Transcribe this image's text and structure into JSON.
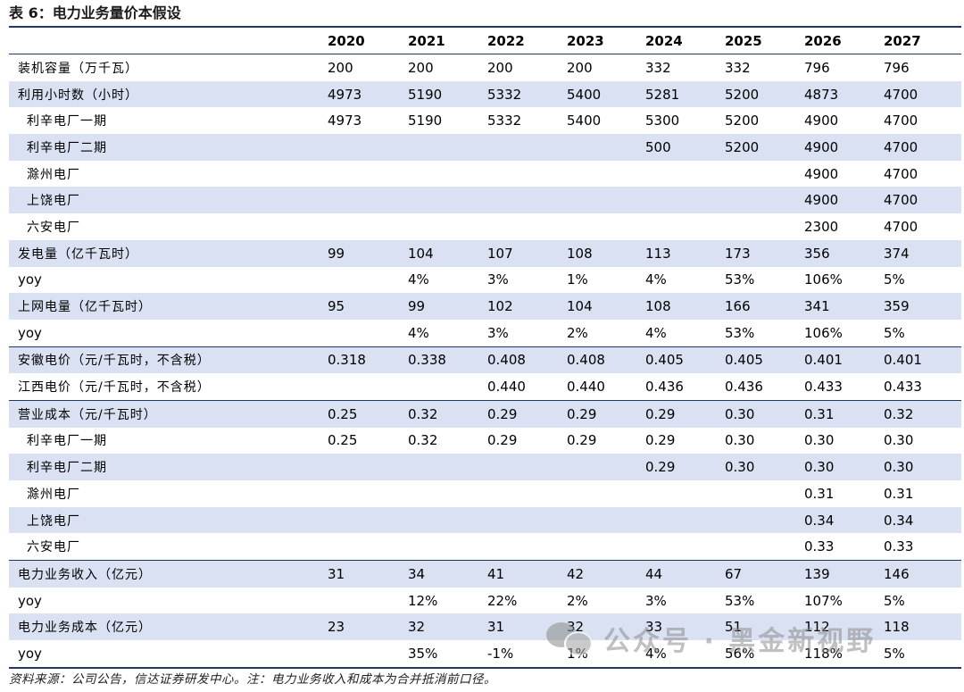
{
  "title": "表 6：电力业务量价本假设",
  "header": [
    "",
    "2020",
    "2021",
    "2022",
    "2023",
    "2024",
    "2025",
    "2026",
    "2027"
  ],
  "rows": [
    {
      "label": "装机容量（万千瓦）",
      "values": [
        "200",
        "200",
        "200",
        "200",
        "332",
        "332",
        "796",
        "796"
      ]
    },
    {
      "label": "利用小时数（小时）",
      "values": [
        "4973",
        "5190",
        "5332",
        "5400",
        "5281",
        "5200",
        "4873",
        "4700"
      ]
    },
    {
      "label": "利辛电厂一期",
      "values": [
        "4973",
        "5190",
        "5332",
        "5400",
        "5300",
        "5200",
        "4900",
        "4700"
      ]
    },
    {
      "label": "利辛电厂二期",
      "values": [
        "",
        "",
        "",
        "",
        "500",
        "5200",
        "4900",
        "4700"
      ]
    },
    {
      "label": "滁州电厂",
      "values": [
        "",
        "",
        "",
        "",
        "",
        "",
        "4900",
        "4700"
      ]
    },
    {
      "label": "上饶电厂",
      "values": [
        "",
        "",
        "",
        "",
        "",
        "",
        "4900",
        "4700"
      ]
    },
    {
      "label": "六安电厂",
      "values": [
        "",
        "",
        "",
        "",
        "",
        "",
        "2300",
        "4700"
      ]
    },
    {
      "label": "发电量（亿千瓦时）",
      "values": [
        "99",
        "104",
        "107",
        "108",
        "113",
        "173",
        "356",
        "374"
      ]
    },
    {
      "label": "yoy",
      "values": [
        "",
        "4%",
        "3%",
        "1%",
        "4%",
        "53%",
        "106%",
        "5%"
      ]
    },
    {
      "label": "上网电量（亿千瓦时）",
      "values": [
        "95",
        "99",
        "102",
        "104",
        "108",
        "166",
        "341",
        "359"
      ]
    },
    {
      "label": "yoy",
      "values": [
        "",
        "4%",
        "3%",
        "2%",
        "4%",
        "53%",
        "106%",
        "5%"
      ]
    },
    {
      "label": "安徽电价（元/千瓦时，不含税）",
      "values": [
        "0.318",
        "0.338",
        "0.408",
        "0.408",
        "0.405",
        "0.405",
        "0.401",
        "0.401"
      ]
    },
    {
      "label": "江西电价（元/千瓦时，不含税）",
      "values": [
        "",
        "",
        "0.440",
        "0.440",
        "0.436",
        "0.436",
        "0.433",
        "0.433"
      ]
    },
    {
      "label": "营业成本（元/千瓦时）",
      "values": [
        "0.25",
        "0.32",
        "0.29",
        "0.29",
        "0.29",
        "0.30",
        "0.31",
        "0.32"
      ]
    },
    {
      "label": "利辛电厂一期",
      "values": [
        "0.25",
        "0.32",
        "0.29",
        "0.29",
        "0.29",
        "0.30",
        "0.30",
        "0.30"
      ]
    },
    {
      "label": "利辛电厂二期",
      "values": [
        "",
        "",
        "",
        "",
        "0.29",
        "0.30",
        "0.30",
        "0.30"
      ]
    },
    {
      "label": "滁州电厂",
      "values": [
        "",
        "",
        "",
        "",
        "",
        "",
        "0.31",
        "0.31"
      ]
    },
    {
      "label": "上饶电厂",
      "values": [
        "",
        "",
        "",
        "",
        "",
        "",
        "0.34",
        "0.34"
      ]
    },
    {
      "label": "六安电厂",
      "values": [
        "",
        "",
        "",
        "",
        "",
        "",
        "0.33",
        "0.33"
      ]
    },
    {
      "label": "电力业务收入（亿元）",
      "values": [
        "31",
        "34",
        "41",
        "42",
        "44",
        "67",
        "139",
        "146"
      ]
    },
    {
      "label": "yoy",
      "values": [
        "",
        "12%",
        "22%",
        "2%",
        "3%",
        "53%",
        "107%",
        "5%"
      ]
    },
    {
      "label": "电力业务成本（亿元）",
      "values": [
        "23",
        "32",
        "31",
        "32",
        "33",
        "51",
        "112",
        "118"
      ]
    },
    {
      "label": "yoy",
      "values": [
        "",
        "35%",
        "-1%",
        "1%",
        "4%",
        "56%",
        "118%",
        "5%"
      ]
    }
  ],
  "source": "资料来源：公司公告，信达证券研发中心。注：电力业务收入和成本为合并抵消前口径。",
  "watermark": "公众号 · 黑金新视野"
}
